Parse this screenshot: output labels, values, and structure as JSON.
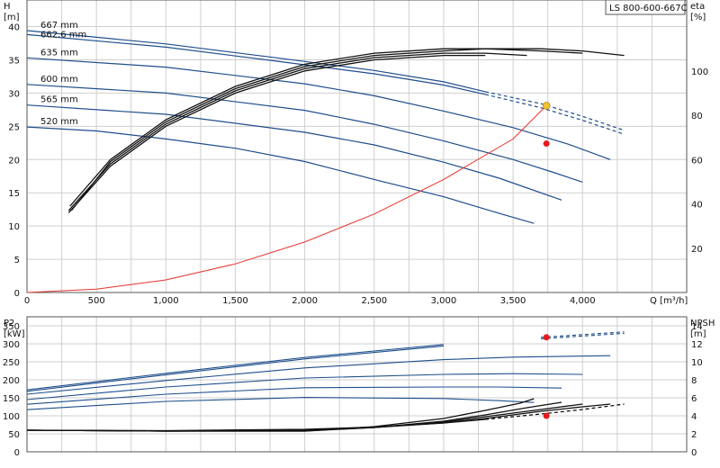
{
  "model_label": "LS 800-600-667C",
  "colors": {
    "curve_blue": "#1f4e8c",
    "curve_black": "#111111",
    "system": "#e8322b",
    "op_head": "#f2c230",
    "op_point": "#e51b1b",
    "grid": "#cfcfcf"
  },
  "chart_data": [
    {
      "type": "line",
      "id": "head_eta",
      "y_axis_left": {
        "label": "H",
        "unit": "[m]",
        "ticks": [
          0,
          5,
          10,
          15,
          20,
          25,
          30,
          35,
          40
        ],
        "range": [
          0,
          44
        ]
      },
      "y_axis_right": {
        "label": "eta",
        "unit": "[%]",
        "ticks": [
          20,
          40,
          60,
          80,
          100
        ],
        "range": [
          0,
          132
        ]
      },
      "x_axis": {
        "label": "Q [m³/h]",
        "ticks": [
          0,
          500,
          1000,
          1500,
          2000,
          2500,
          3000,
          3500,
          4000
        ],
        "tick_labels": [
          "0",
          "500",
          "1,000",
          "1,500",
          "2,000",
          "2,500",
          "3,000",
          "3,500",
          "4,000"
        ],
        "range": [
          0,
          4750
        ]
      },
      "head_curves": [
        {
          "name": "667 mm",
          "x": [
            0,
            1000,
            1800,
            2500,
            3000,
            3300,
            3700,
            4000,
            4300
          ],
          "y": [
            39.4,
            37.4,
            35.3,
            33.4,
            31.7,
            30.2,
            28.4,
            26.5,
            24.4
          ],
          "dashed_from": 3300
        },
        {
          "name": "662.6 mm",
          "x": [
            0,
            1000,
            1800,
            2500,
            3000,
            3300,
            3700,
            4000,
            4300
          ],
          "y": [
            38.8,
            36.9,
            34.8,
            32.9,
            31.2,
            29.8,
            27.8,
            25.9,
            23.8
          ],
          "dashed_from": 3300
        },
        {
          "name": "635 mm",
          "x": [
            0,
            1000,
            2000,
            2500,
            3000,
            3500,
            3900,
            4200
          ],
          "y": [
            35.3,
            33.9,
            31.4,
            29.6,
            27.3,
            24.8,
            22.3,
            20.0
          ]
        },
        {
          "name": "600 mm",
          "x": [
            0,
            1000,
            2000,
            2500,
            3000,
            3500,
            3800,
            4000
          ],
          "y": [
            31.3,
            30.0,
            27.4,
            25.3,
            22.8,
            20.0,
            18.0,
            16.6
          ]
        },
        {
          "name": "565 mm",
          "x": [
            0,
            1000,
            2000,
            2500,
            3000,
            3400,
            3850
          ],
          "y": [
            28.2,
            26.8,
            24.1,
            22.2,
            19.6,
            17.2,
            13.9
          ]
        },
        {
          "name": "520 mm",
          "x": [
            0,
            500,
            1000,
            1500,
            2000,
            2500,
            3000,
            3400,
            3650
          ],
          "y": [
            24.9,
            24.3,
            23.1,
            21.7,
            19.7,
            17.0,
            14.4,
            11.9,
            10.4
          ]
        }
      ],
      "eta_curves": [
        {
          "x": [
            310,
            600,
            1000,
            1500,
            2000,
            2500,
            3000,
            3300,
            3700,
            4000,
            4300
          ],
          "y": [
            39,
            60,
            78,
            93,
            103,
            108,
            110,
            110,
            110,
            109,
            107
          ]
        },
        {
          "x": [
            320,
            600,
            1000,
            1500,
            2000,
            2500,
            3000,
            3300,
            3700,
            4000
          ],
          "y": [
            37,
            59,
            77,
            92,
            102,
            107,
            109,
            110,
            109,
            108
          ]
        },
        {
          "x": [
            300,
            600,
            1000,
            1500,
            2000,
            2500,
            3000,
            3300,
            3600
          ],
          "y": [
            37,
            58,
            76,
            91,
            101,
            106,
            108,
            108,
            107
          ]
        },
        {
          "x": [
            300,
            600,
            1000,
            1500,
            2000,
            2500,
            3000,
            3300
          ],
          "y": [
            36,
            57,
            75,
            90,
            100,
            105,
            107,
            107
          ]
        }
      ],
      "system_curve": {
        "x": [
          0,
          500,
          1000,
          1500,
          2000,
          2500,
          3000,
          3500,
          3740
        ],
        "y": [
          0,
          0.5,
          1.9,
          4.3,
          7.6,
          11.8,
          17.0,
          23.1,
          28.1
        ]
      },
      "operating_point_head": {
        "x": 3740,
        "y": 28.1
      },
      "operating_point_eta": {
        "x": 3740,
        "y": 22.4
      },
      "curve_labels": [
        "667 mm",
        "662.6 mm",
        "635 mm",
        "600 mm",
        "565 mm",
        "520 mm"
      ]
    },
    {
      "type": "line",
      "id": "power_npsh",
      "y_axis_left": {
        "label": "P2",
        "unit": "[kW]",
        "ticks": [
          0,
          50,
          100,
          150,
          200,
          250,
          300,
          350
        ],
        "range": [
          0,
          375
        ]
      },
      "y_axis_right": {
        "label": "NPSH",
        "unit": "[m]",
        "ticks": [
          0,
          2,
          4,
          6,
          8,
          10,
          12,
          14
        ],
        "range": [
          0,
          15
        ]
      },
      "x_axis": {
        "range": [
          0,
          4750
        ]
      },
      "power_curves": [
        {
          "x": [
            0,
            1000,
            2000,
            3000,
            3700,
            4300
          ],
          "y": [
            172,
            218,
            262,
            298,
            318,
            333
          ],
          "dashed_from": 3300
        },
        {
          "x": [
            0,
            1000,
            2000,
            3000,
            3700,
            4300
          ],
          "y": [
            168,
            214,
            258,
            294,
            314,
            329
          ],
          "dashed_from": 3300
        },
        {
          "x": [
            0,
            1000,
            2000,
            3000,
            3500,
            4200
          ],
          "y": [
            160,
            198,
            233,
            256,
            263,
            267
          ]
        },
        {
          "x": [
            0,
            1000,
            2000,
            3000,
            3500,
            4000
          ],
          "y": [
            145,
            180,
            205,
            215,
            217,
            215
          ]
        },
        {
          "x": [
            0,
            1000,
            2000,
            3000,
            3400,
            3850
          ],
          "y": [
            132,
            160,
            178,
            180,
            180,
            177
          ]
        },
        {
          "x": [
            0,
            1000,
            2000,
            3000,
            3400,
            3650
          ],
          "y": [
            117,
            140,
            151,
            148,
            142,
            137
          ]
        }
      ],
      "npsh_curves": [
        {
          "x": [
            0,
            1000,
            2000,
            2500,
            3000,
            3300,
            3700,
            4000,
            4300
          ],
          "y": [
            2.4,
            2.35,
            2.5,
            2.75,
            3.2,
            3.6,
            4.2,
            4.7,
            5.3
          ],
          "dashed_from": 3300
        },
        {
          "x": [
            0,
            1000,
            2000,
            2500,
            3000,
            3300,
            3700,
            4000,
            4200
          ],
          "y": [
            2.4,
            2.3,
            2.4,
            2.7,
            3.2,
            3.7,
            4.5,
            5.0,
            5.3
          ]
        },
        {
          "x": [
            0,
            1000,
            2000,
            2500,
            3000,
            3300,
            3700,
            4000
          ],
          "y": [
            2.4,
            2.3,
            2.35,
            2.7,
            3.3,
            3.9,
            4.7,
            5.3
          ]
        },
        {
          "x": [
            0,
            1000,
            2000,
            2500,
            3000,
            3300,
            3600,
            3850
          ],
          "y": [
            2.4,
            2.3,
            2.3,
            2.7,
            3.4,
            4.1,
            4.9,
            5.5
          ]
        },
        {
          "x": [
            0,
            1000,
            2000,
            2500,
            3000,
            3300,
            3550,
            3650
          ],
          "y": [
            2.4,
            2.3,
            2.3,
            2.8,
            3.7,
            4.6,
            5.4,
            5.9
          ]
        }
      ],
      "operating_point_power": {
        "x": 3740,
        "y": 318
      },
      "operating_point_npsh": {
        "x": 3740,
        "y": 4.0
      }
    }
  ]
}
